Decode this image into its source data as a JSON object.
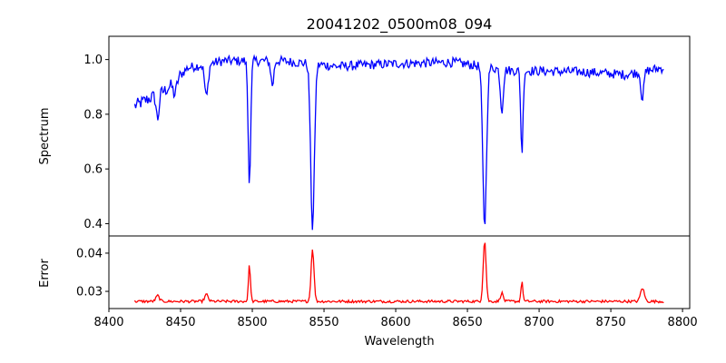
{
  "chart_data": {
    "type": "line",
    "title": "20041202_0500m08_094",
    "xlabel": "Wavelength",
    "x_ticks": [
      8400,
      8450,
      8500,
      8550,
      8600,
      8650,
      8700,
      8750,
      8800
    ],
    "xlim": [
      8400,
      8805
    ],
    "grid": false,
    "legend": "none",
    "panels": [
      {
        "ylabel": "Spectrum",
        "ylim": [
          0.355,
          1.085
        ],
        "y_ticks": [
          0.4,
          0.6,
          0.8,
          1.0
        ],
        "color": "#0000ff",
        "continuum": [
          [
            8418,
            0.83
          ],
          [
            8440,
            0.89
          ],
          [
            8455,
            0.97
          ],
          [
            8480,
            0.995
          ],
          [
            8520,
            0.995
          ],
          [
            8560,
            0.975
          ],
          [
            8600,
            0.985
          ],
          [
            8640,
            0.99
          ],
          [
            8680,
            0.96
          ],
          [
            8730,
            0.955
          ],
          [
            8760,
            0.945
          ],
          [
            8787,
            0.97
          ]
        ],
        "features": [
          {
            "center": 8434,
            "depth": 0.09,
            "width": 1.0
          },
          {
            "center": 8446,
            "depth": 0.05,
            "width": 1.2
          },
          {
            "center": 8468,
            "depth": 0.12,
            "width": 1.2
          },
          {
            "center": 8498,
            "depth": 0.44,
            "width": 0.9
          },
          {
            "center": 8514,
            "depth": 0.09,
            "width": 1.0
          },
          {
            "center": 8542,
            "depth": 0.6,
            "width": 1.3
          },
          {
            "center": 8662,
            "depth": 0.58,
            "width": 1.3
          },
          {
            "center": 8674,
            "depth": 0.15,
            "width": 1.0
          },
          {
            "center": 8688,
            "depth": 0.3,
            "width": 0.8
          },
          {
            "center": 8772,
            "depth": 0.1,
            "width": 1.0
          }
        ],
        "noise": 0.022
      },
      {
        "ylabel": "Error",
        "ylim": [
          0.0255,
          0.0445
        ],
        "y_ticks": [
          0.03,
          0.04
        ],
        "color": "#ff0000",
        "baseline": 0.0273,
        "features": [
          {
            "center": 8434,
            "height": 0.0015,
            "width": 1.2
          },
          {
            "center": 8468,
            "height": 0.0018,
            "width": 1.2
          },
          {
            "center": 8498,
            "height": 0.0095,
            "width": 0.7
          },
          {
            "center": 8542,
            "height": 0.0138,
            "width": 1.0
          },
          {
            "center": 8662,
            "height": 0.016,
            "width": 1.0
          },
          {
            "center": 8674,
            "height": 0.0022,
            "width": 1.0
          },
          {
            "center": 8688,
            "height": 0.005,
            "width": 0.7
          },
          {
            "center": 8772,
            "height": 0.0035,
            "width": 1.3
          }
        ],
        "noise": 0.0007
      }
    ],
    "x_start": 8418,
    "x_end": 8787,
    "x_step": 0.7
  }
}
